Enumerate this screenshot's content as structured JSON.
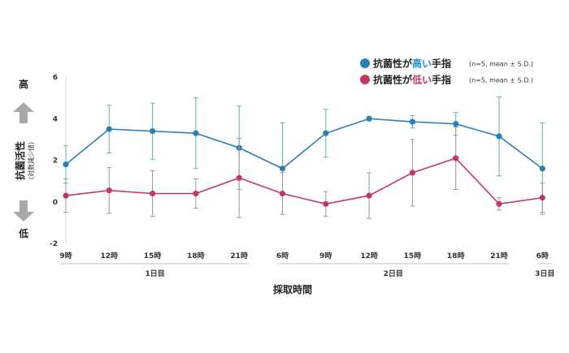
{
  "chart_data": {
    "type": "line",
    "x": [
      "9時",
      "12時",
      "15時",
      "18時",
      "21時",
      "6時",
      "9時",
      "12時",
      "15時",
      "18時",
      "21時",
      "6時"
    ],
    "days": [
      {
        "label": "1日目",
        "from": 0,
        "to": 4
      },
      {
        "label": "2日目",
        "from": 5,
        "to": 10
      },
      {
        "label": "3日目",
        "from": 11,
        "to": 11
      }
    ],
    "xlabel": "採取時間",
    "ylabel": "抗菌活性",
    "ylabel_sub": "(対数減少値)",
    "y_high_label": "高",
    "y_low_label": "低",
    "ylim": [
      -2,
      6
    ],
    "yticks": [
      -2,
      0,
      2,
      4,
      6
    ],
    "series": [
      {
        "name": "抗菌性が高い手指",
        "name_prefix": "抗菌性が",
        "name_key": "高い",
        "name_suffix": "手指",
        "note": "(n=5, mean ± S.D.)",
        "color": "#2a7fb5",
        "key_color": "#1f8fd0",
        "bar_color": "#5cb8a8",
        "values": [
          1.8,
          3.5,
          3.4,
          3.3,
          2.6,
          1.6,
          3.3,
          4.0,
          3.85,
          3.75,
          3.15,
          1.6
        ],
        "sd": [
          0.9,
          1.15,
          1.35,
          1.7,
          2.0,
          2.2,
          1.15,
          0.1,
          0.3,
          0.55,
          1.9,
          2.2
        ]
      },
      {
        "name": "抗菌性が低い手指",
        "name_prefix": "抗菌性が",
        "name_key": "低い",
        "name_suffix": "手指",
        "note": "(n=5, mean ± S.D.)",
        "color": "#c0395e",
        "key_color": "#c0395e",
        "bar_color": "#9a9a9a",
        "values": [
          0.3,
          0.55,
          0.4,
          0.4,
          1.15,
          0.4,
          -0.1,
          0.3,
          1.4,
          2.1,
          -0.1,
          0.2
        ],
        "sd": [
          0.8,
          1.1,
          1.1,
          0.7,
          1.9,
          1.0,
          0.6,
          1.1,
          1.6,
          1.5,
          0.3,
          0.7
        ]
      }
    ],
    "arrow_color": "#a9a9a9",
    "grid": false,
    "legend_position": "top-right"
  }
}
